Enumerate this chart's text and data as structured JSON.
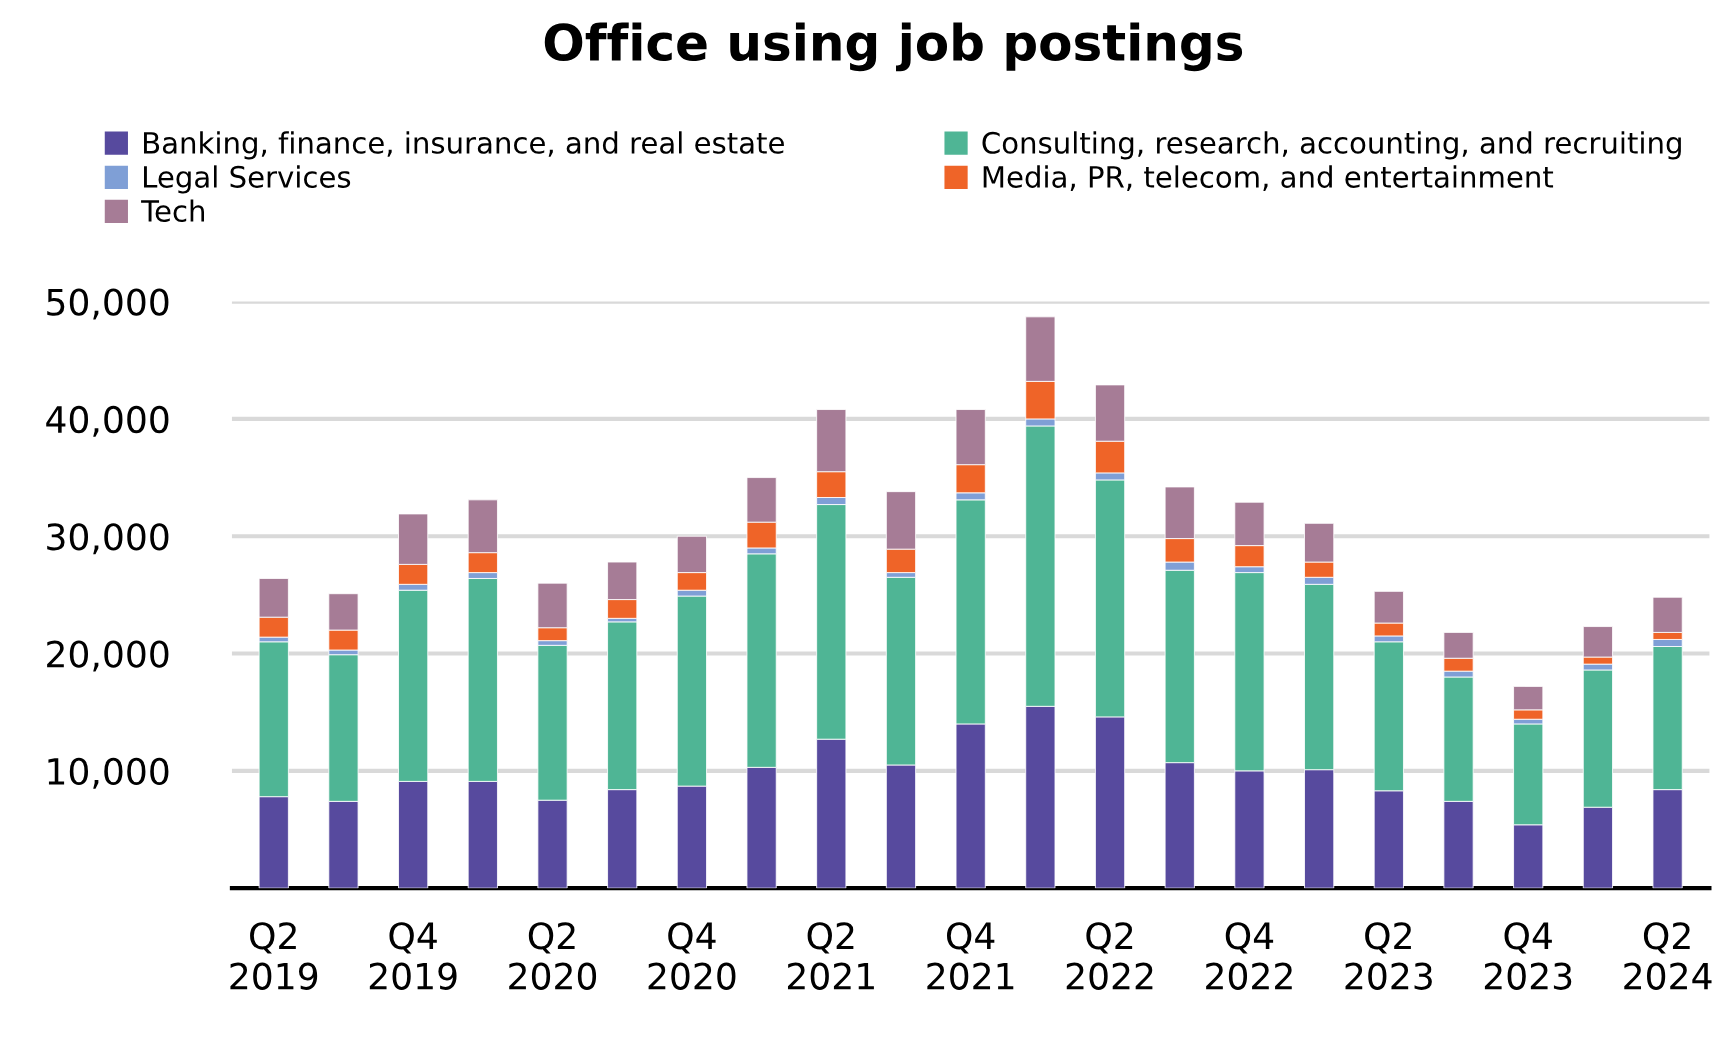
{
  "chart_data": {
    "type": "bar",
    "stacked": true,
    "title": "Office using job postings",
    "categories": [
      "Q2\n2019",
      null,
      "Q4\n2019",
      null,
      "Q2\n2020",
      null,
      "Q4\n2020",
      null,
      "Q2\n2021",
      null,
      "Q4\n2021",
      null,
      "Q2\n2022",
      null,
      "Q4\n2022",
      null,
      "Q2\n2023",
      null,
      "Q4\n2023",
      null,
      "Q2\n2024"
    ],
    "series": [
      {
        "name": "Banking, finance, insurance, and real estate",
        "color": "#574a9e",
        "values": [
          7800,
          7400,
          9100,
          9100,
          7500,
          8400,
          8700,
          10300,
          12700,
          10500,
          14000,
          15500,
          14600,
          10700,
          10000,
          10100,
          8300,
          7400,
          5400,
          6900,
          8400
        ]
      },
      {
        "name": "Consulting, research, accounting, and recruiting",
        "color": "#4fb595",
        "values": [
          13200,
          12500,
          16300,
          17300,
          13200,
          14300,
          16200,
          18200,
          20000,
          16000,
          19100,
          23900,
          20200,
          16400,
          16900,
          15800,
          12700,
          10600,
          8600,
          11700,
          12200
        ]
      },
      {
        "name": "Legal Services",
        "color": "#7f9fd6",
        "values": [
          400,
          400,
          500,
          500,
          400,
          300,
          500,
          500,
          600,
          400,
          600,
          600,
          600,
          700,
          500,
          600,
          500,
          500,
          400,
          500,
          600
        ]
      },
      {
        "name": "Media, PR, telecom, and entertainment",
        "color": "#ef6428",
        "values": [
          1700,
          1700,
          1700,
          1700,
          1100,
          1600,
          1500,
          2200,
          2200,
          2000,
          2400,
          3200,
          2700,
          2000,
          1800,
          1300,
          1100,
          1100,
          800,
          600,
          600
        ]
      },
      {
        "name": "Tech",
        "color": "#a67c96",
        "values": [
          3300,
          3100,
          4300,
          4500,
          3800,
          3200,
          3100,
          3800,
          5300,
          4900,
          4700,
          5500,
          4800,
          4400,
          3700,
          3300,
          2700,
          2200,
          2000,
          2600,
          3000
        ]
      }
    ],
    "ylim": [
      0,
      50000
    ],
    "yticks": [
      {
        "value": 0,
        "label": null
      },
      {
        "value": 10000,
        "label": "10,000"
      },
      {
        "value": 20000,
        "label": "20,000"
      },
      {
        "value": 30000,
        "label": "30,000"
      },
      {
        "value": 40000,
        "label": "40,000"
      },
      {
        "value": 50000,
        "label": "50,000"
      }
    ],
    "grid": "y",
    "legend": "top"
  }
}
